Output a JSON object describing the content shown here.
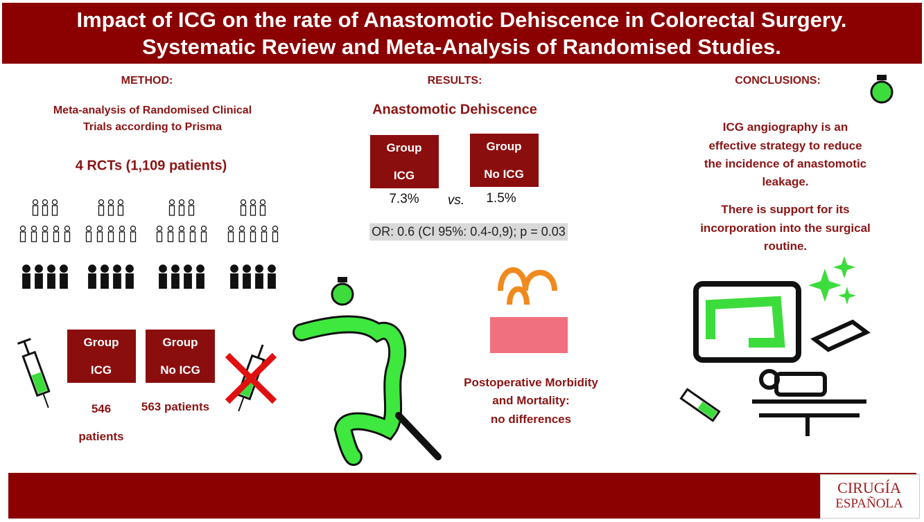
{
  "header": {
    "title": [
      "Impact of ICG on the rate of Anastomotic Dehiscence in Colorectal Surgery.",
      "Systematic Review and Meta-Analysis of Randomised Studies."
    ]
  },
  "method": {
    "heading": "METHOD:",
    "description": [
      "Meta-analysis of Randomised Clinical",
      "Trials according to Prisma"
    ],
    "count": "4 RCTs (1,109 patients)",
    "groups": [
      {
        "label": [
          "Group",
          "ICG"
        ],
        "patients": [
          "546",
          "patients"
        ]
      },
      {
        "label": [
          "Group",
          "No ICG"
        ],
        "patients": [
          "563 patients"
        ]
      }
    ]
  },
  "results": {
    "heading": "RESULTS:",
    "subtitle": "Anastomotic Dehiscence",
    "groups": [
      {
        "label": [
          "Group",
          "ICG"
        ],
        "rate": "7.3%"
      },
      {
        "label": [
          "Group",
          "No ICG"
        ],
        "rate": "1.5%"
      }
    ],
    "versus": "vs.",
    "statistic": "OR: 0.6 (CI 95%: 0.4-0,9); p = 0.03",
    "morbidity": [
      "Postoperative Morbidity",
      "and Mortality:",
      "no differences"
    ]
  },
  "conclusions": {
    "heading": "CONCLUSIONS:",
    "paragraph1": [
      "ICG angiography is an",
      "effective strategy to reduce",
      "the incidence of anastomotic",
      "leakage."
    ],
    "paragraph2": [
      "There is support for its",
      "incorporation into the surgical",
      "routine."
    ]
  },
  "footer": {
    "logo": [
      "CIRUGÍA",
      "ESPAÑOLA"
    ]
  }
}
